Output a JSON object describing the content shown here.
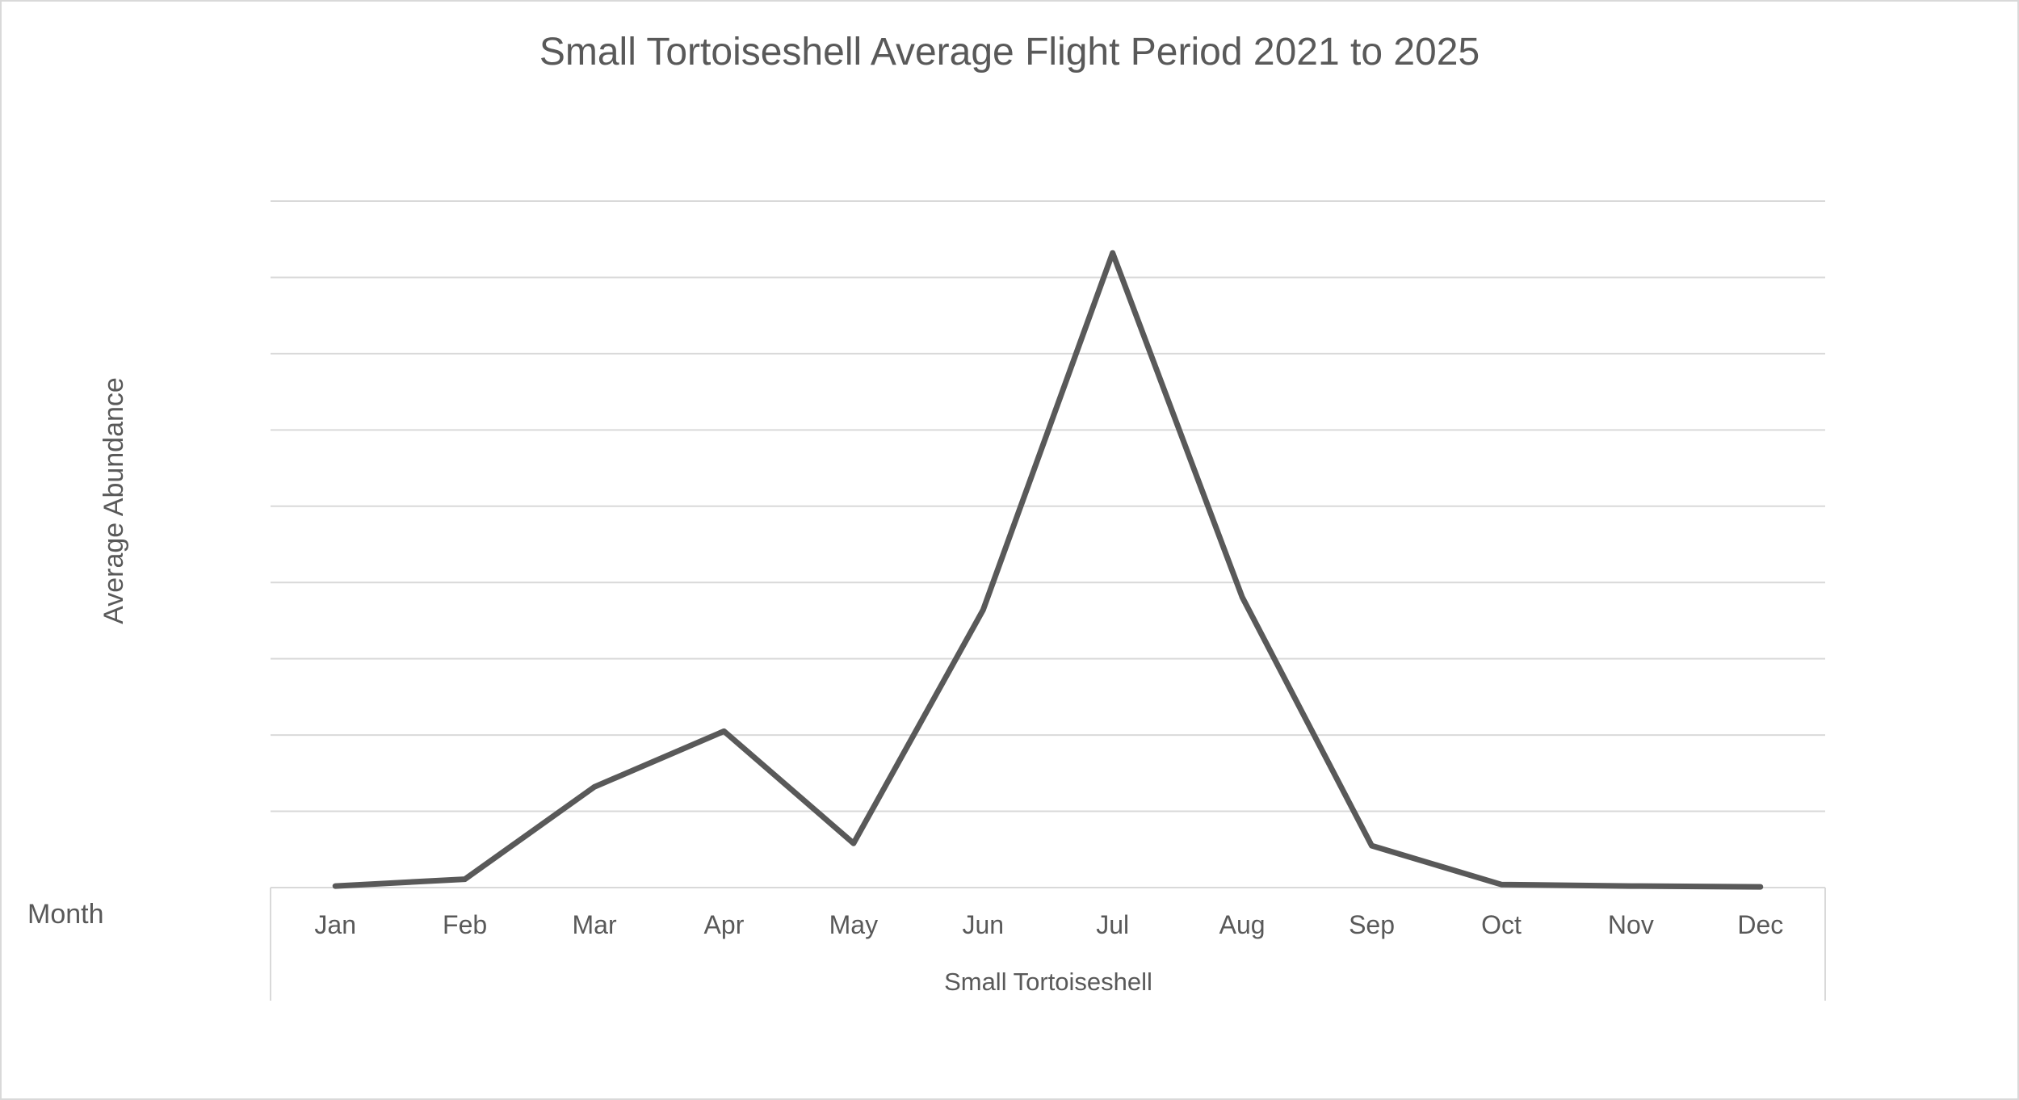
{
  "chart_data": {
    "type": "line",
    "title": "Small Tortoiseshell Average Flight Period 2021 to 2025",
    "xlabel": "Month",
    "ylabel": "Average Abundance",
    "group_label": "Small Tortoiseshell",
    "categories": [
      "Jan",
      "Feb",
      "Mar",
      "Apr",
      "May",
      "Jun",
      "Jul",
      "Aug",
      "Sep",
      "Oct",
      "Nov",
      "Dec"
    ],
    "series": [
      {
        "name": "Small Tortoiseshell",
        "values": [
          0.02,
          0.11,
          1.32,
          2.05,
          0.58,
          3.64,
          8.32,
          3.81,
          0.55,
          0.04,
          0.02,
          0.01
        ]
      }
    ],
    "ylim": [
      0,
      9
    ],
    "gridlines": 9,
    "grid": true,
    "y_tick_labels_visible": false,
    "legend": "none",
    "colors": {
      "line": "#595959",
      "grid": "#d9d9d9",
      "text": "#595959",
      "border": "#d9d9d9"
    }
  }
}
